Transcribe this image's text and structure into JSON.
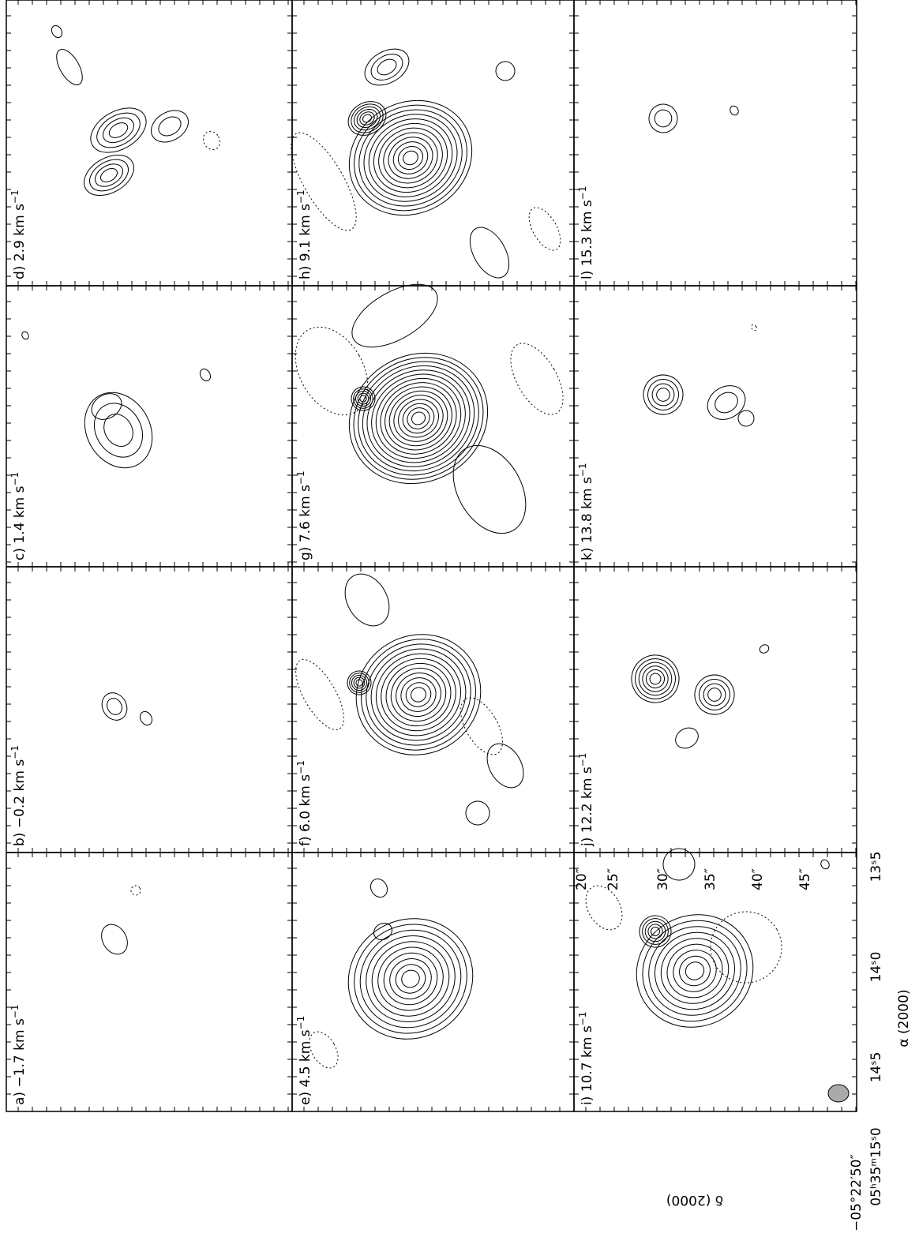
{
  "figure": {
    "unit_sup": "−1",
    "panels": [
      {
        "label": "a) −1.7 km s"
      },
      {
        "label": "b) −0.2 km s"
      },
      {
        "label": "c) 1.4 km s"
      },
      {
        "label": "d) 2.9 km s"
      },
      {
        "label": "e) 4.5 km s"
      },
      {
        "label": "f) 6.0 km s"
      },
      {
        "label": "g) 7.6 km s"
      },
      {
        "label": "h) 9.1 km s"
      },
      {
        "label": "i) 10.7 km s"
      },
      {
        "label": "j) 12.2 km s"
      },
      {
        "label": "k) 13.8 km s"
      },
      {
        "label": "l) 15.3 km s"
      }
    ],
    "dec_axis": {
      "label": "δ (2000)",
      "ticks": [
        "20″",
        "25″",
        "30″",
        "35″",
        "40″",
        "45″",
        "−05°22′50″"
      ]
    },
    "ra_axis": {
      "label": "α (2000)",
      "ticks": [
        "13ˢ5",
        "14ˢ0",
        "14ˢ5",
        "05ʰ35ᵐ15ˢ0"
      ]
    }
  }
}
